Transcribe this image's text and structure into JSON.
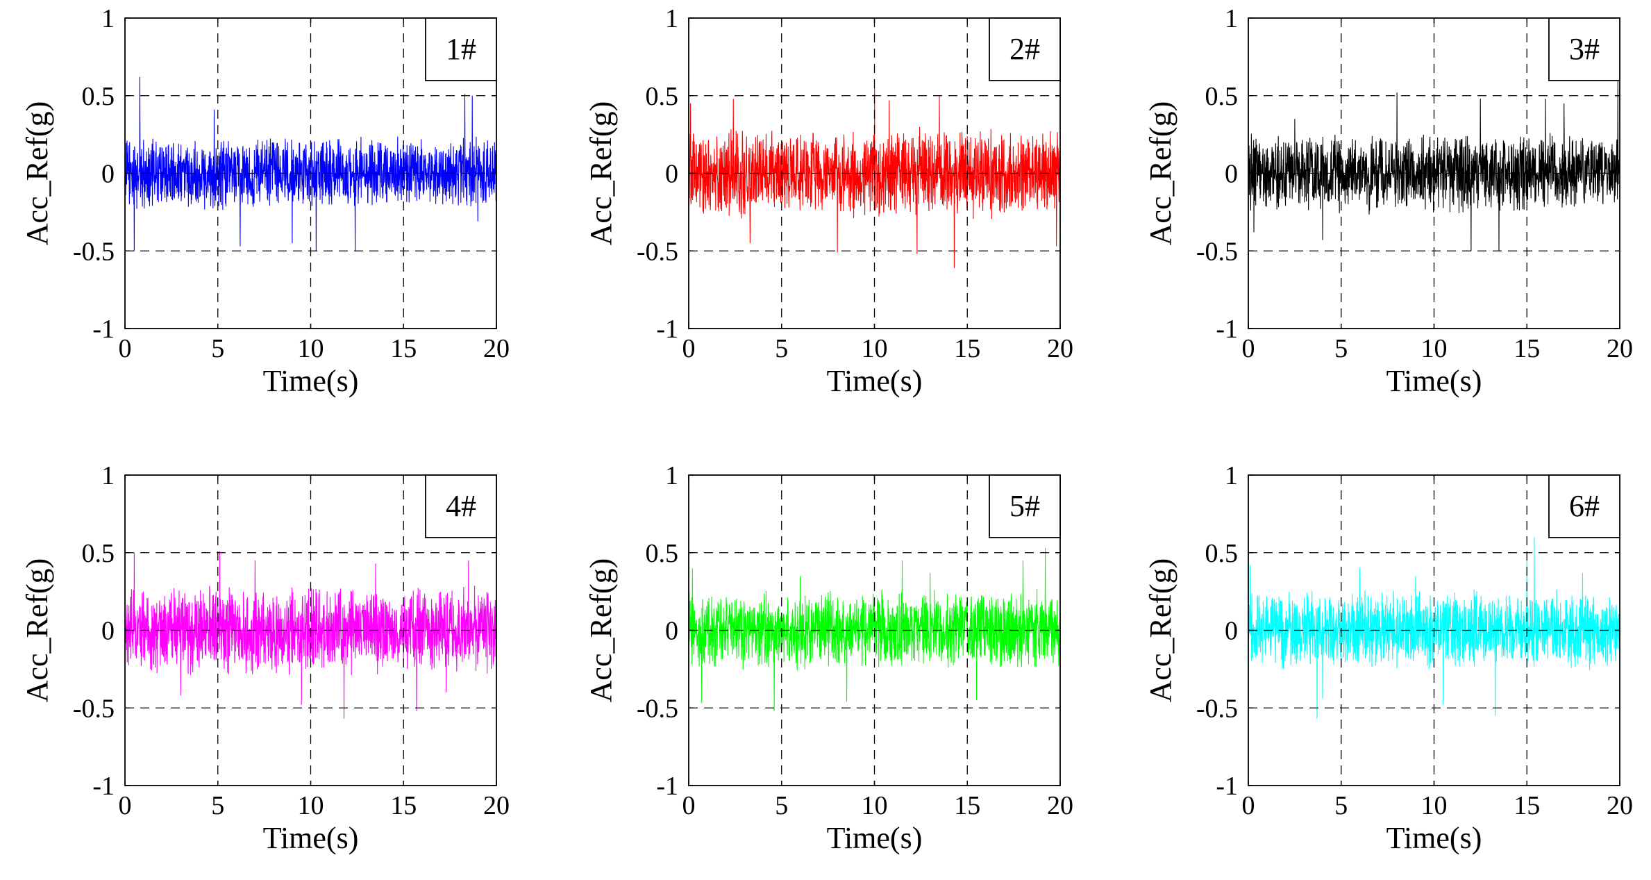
{
  "chart_data": [
    {
      "type": "line",
      "title": "1#",
      "xlabel": "Time(s)",
      "ylabel": "Acc_Ref(g)",
      "xlim": [
        0,
        20
      ],
      "ylim": [
        -1,
        1
      ],
      "xticks": [
        "0",
        "5",
        "10",
        "15",
        "20"
      ],
      "yticks": [
        "-1",
        "-0.5",
        "0",
        "0.5",
        "1"
      ],
      "grid": "dashed",
      "legend_position": "top-right",
      "series": [
        {
          "name": "1#",
          "color": "#0000ff",
          "amplitude_typical": 0.25,
          "peak_max": 0.62,
          "peak_min": -0.51,
          "peaks": [
            [
              0.8,
              0.62
            ],
            [
              0.5,
              -0.5
            ],
            [
              18.3,
              0.51
            ],
            [
              18.7,
              0.5
            ],
            [
              6.2,
              -0.47
            ],
            [
              9.0,
              -0.45
            ],
            [
              10.3,
              -0.5
            ],
            [
              12.4,
              -0.5
            ],
            [
              4.8,
              0.41
            ],
            [
              19.0,
              -0.31
            ]
          ]
        }
      ]
    },
    {
      "type": "line",
      "title": "2#",
      "xlabel": "Time(s)",
      "ylabel": "Acc_Ref(g)",
      "xlim": [
        0,
        20
      ],
      "ylim": [
        -1,
        1
      ],
      "xticks": [
        "0",
        "5",
        "10",
        "15",
        "20"
      ],
      "yticks": [
        "-1",
        "-0.5",
        "0",
        "0.5",
        "1"
      ],
      "grid": "dashed",
      "legend_position": "top-right",
      "series": [
        {
          "name": "2#",
          "color": "#ff0000",
          "amplitude_typical": 0.3,
          "peak_max": 0.55,
          "peak_min": -0.61,
          "peaks": [
            [
              0.1,
              0.45
            ],
            [
              2.4,
              0.48
            ],
            [
              8.0,
              -0.51
            ],
            [
              10.0,
              0.55
            ],
            [
              10.8,
              0.47
            ],
            [
              12.3,
              -0.52
            ],
            [
              14.3,
              -0.61
            ],
            [
              13.5,
              0.5
            ],
            [
              19.8,
              -0.47
            ],
            [
              3.3,
              -0.45
            ]
          ]
        }
      ]
    },
    {
      "type": "line",
      "title": "3#",
      "xlabel": "Time(s)",
      "ylabel": "Acc_Ref(g)",
      "xlim": [
        0,
        20
      ],
      "ylim": [
        -1,
        1
      ],
      "xticks": [
        "0",
        "5",
        "10",
        "15",
        "20"
      ],
      "yticks": [
        "-1",
        "-0.5",
        "0",
        "0.5",
        "1"
      ],
      "grid": "dashed",
      "legend_position": "top-right",
      "series": [
        {
          "name": "3#",
          "color": "#000000",
          "amplitude_typical": 0.27,
          "peak_max": 0.6,
          "peak_min": -0.5,
          "peaks": [
            [
              0.3,
              -0.38
            ],
            [
              8.0,
              0.52
            ],
            [
              12.5,
              0.48
            ],
            [
              16.0,
              0.48
            ],
            [
              19.9,
              0.6
            ],
            [
              12.0,
              -0.5
            ],
            [
              13.5,
              -0.5
            ],
            [
              4.0,
              -0.43
            ],
            [
              17.0,
              0.45
            ],
            [
              2.5,
              0.35
            ]
          ]
        }
      ]
    },
    {
      "type": "line",
      "title": "4#",
      "xlabel": "Time(s)",
      "ylabel": "Acc_Ref(g)",
      "xlim": [
        0,
        20
      ],
      "ylim": [
        -1,
        1
      ],
      "xticks": [
        "0",
        "5",
        "10",
        "15",
        "20"
      ],
      "yticks": [
        "-1",
        "-0.5",
        "0",
        "0.5",
        "1"
      ],
      "grid": "dashed",
      "legend_position": "top-right",
      "series": [
        {
          "name": "4#",
          "color": "#ff00ff",
          "amplitude_typical": 0.3,
          "peak_max": 0.51,
          "peak_min": -0.57,
          "peaks": [
            [
              0.5,
              0.5
            ],
            [
              5.1,
              0.51
            ],
            [
              11.8,
              -0.57
            ],
            [
              15.7,
              -0.52
            ],
            [
              18.5,
              0.45
            ],
            [
              7.0,
              0.45
            ],
            [
              3.0,
              -0.42
            ],
            [
              9.5,
              -0.48
            ],
            [
              13.5,
              0.43
            ],
            [
              17.3,
              -0.4
            ]
          ]
        }
      ]
    },
    {
      "type": "line",
      "title": "5#",
      "xlabel": "Time(s)",
      "ylabel": "Acc_Ref(g)",
      "xlim": [
        0,
        20
      ],
      "ylim": [
        -1,
        1
      ],
      "xticks": [
        "0",
        "5",
        "10",
        "15",
        "20"
      ],
      "yticks": [
        "-1",
        "-0.5",
        "0",
        "0.5",
        "1"
      ],
      "grid": "dashed",
      "legend_position": "top-right",
      "series": [
        {
          "name": "5#",
          "color": "#00ff00",
          "amplitude_typical": 0.27,
          "peak_max": 0.53,
          "peak_min": -0.52,
          "peaks": [
            [
              0.2,
              0.4
            ],
            [
              0.7,
              -0.47
            ],
            [
              4.6,
              -0.52
            ],
            [
              11.5,
              0.45
            ],
            [
              19.2,
              0.53
            ],
            [
              18.0,
              0.45
            ],
            [
              15.5,
              -0.45
            ],
            [
              8.5,
              -0.46
            ],
            [
              13.0,
              0.37
            ],
            [
              6.0,
              0.35
            ]
          ]
        }
      ]
    },
    {
      "type": "line",
      "title": "6#",
      "xlabel": "Time(s)",
      "ylabel": "Acc_Ref(g)",
      "xlim": [
        0,
        20
      ],
      "ylim": [
        -1,
        1
      ],
      "xticks": [
        "0",
        "5",
        "10",
        "15",
        "20"
      ],
      "yticks": [
        "-1",
        "-0.5",
        "0",
        "0.5",
        "1"
      ],
      "grid": "dashed",
      "legend_position": "top-right",
      "series": [
        {
          "name": "6#",
          "color": "#00ffff",
          "amplitude_typical": 0.27,
          "peak_max": 0.6,
          "peak_min": -0.57,
          "peaks": [
            [
              15.4,
              0.6
            ],
            [
              15.0,
              0.45
            ],
            [
              3.7,
              -0.57
            ],
            [
              13.3,
              -0.55
            ],
            [
              0.1,
              0.42
            ],
            [
              10.5,
              -0.48
            ],
            [
              6.0,
              0.4
            ],
            [
              18.0,
              0.37
            ],
            [
              9.0,
              0.35
            ],
            [
              4.0,
              -0.44
            ]
          ]
        }
      ]
    }
  ]
}
